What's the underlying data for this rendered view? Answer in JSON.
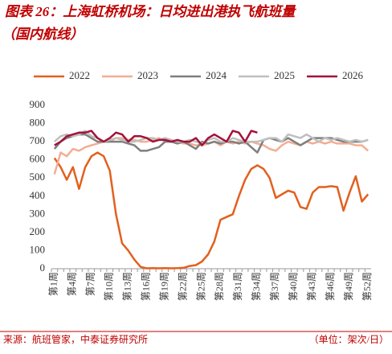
{
  "chart_data": {
    "type": "line",
    "title": [
      "图表 26：上海虹桥机场：日均进出港执飞航班量",
      "（国内航线）"
    ],
    "source": "来源：航班管家，中泰证券研究所",
    "unit_note": "（单位：架次/日）",
    "categories": [
      "第1周",
      null,
      null,
      "第4周",
      null,
      null,
      "第7周",
      null,
      null,
      "第10周",
      null,
      null,
      "第13周",
      null,
      null,
      "第16周",
      null,
      null,
      "第19周",
      null,
      null,
      "第22周",
      null,
      null,
      "第25周",
      null,
      null,
      "第28周",
      null,
      null,
      "第31周",
      null,
      null,
      "第34周",
      null,
      null,
      "第37周",
      null,
      null,
      "第40周",
      null,
      null,
      "第43周",
      null,
      null,
      "第46周",
      null,
      null,
      "第49周",
      null,
      null,
      "第52周"
    ],
    "ylim": [
      0,
      900
    ],
    "yticks": [
      0,
      100,
      200,
      300,
      400,
      500,
      600,
      700,
      800,
      900
    ],
    "legend": "top",
    "series": [
      {
        "name": "2022",
        "color": "#e2601f",
        "values": [
          610,
          560,
          490,
          560,
          440,
          560,
          620,
          640,
          620,
          540,
          300,
          140,
          100,
          50,
          10,
          2,
          3,
          2,
          3,
          2,
          3,
          5,
          15,
          20,
          40,
          80,
          150,
          270,
          285,
          300,
          400,
          490,
          550,
          570,
          550,
          500,
          390,
          410,
          430,
          420,
          340,
          330,
          420,
          450,
          450,
          455,
          450,
          320,
          420,
          510,
          370,
          410
        ]
      },
      {
        "name": "2023",
        "color": "#f4ad92",
        "values": [
          520,
          640,
          620,
          660,
          650,
          670,
          680,
          690,
          700,
          700,
          720,
          720,
          710,
          710,
          700,
          700,
          710,
          720,
          700,
          700,
          700,
          690,
          690,
          680,
          680,
          690,
          700,
          680,
          700,
          690,
          700,
          690,
          700,
          690,
          680,
          660,
          650,
          680,
          700,
          690,
          680,
          700,
          690,
          700,
          690,
          700,
          690,
          690,
          690,
          680,
          680,
          650
        ]
      },
      {
        "name": "2024",
        "color": "#7f7f7f",
        "values": [
          660,
          700,
          720,
          730,
          740,
          740,
          720,
          700,
          700,
          700,
          700,
          700,
          690,
          680,
          650,
          650,
          660,
          670,
          700,
          700,
          690,
          700,
          680,
          660,
          700,
          690,
          700,
          690,
          700,
          700,
          690,
          700,
          670,
          640,
          710,
          720,
          710,
          700,
          720,
          700,
          680,
          700,
          720,
          720,
          720,
          720,
          710,
          700,
          700,
          700,
          700,
          710
        ]
      },
      {
        "name": "2025",
        "color": "#bfbfbf",
        "values": [
          700,
          730,
          740,
          730,
          740,
          760,
          730,
          720,
          700,
          710,
          720,
          710,
          700,
          700,
          710,
          720,
          720,
          710,
          720,
          710,
          700,
          700,
          710,
          700,
          690,
          710,
          720,
          700,
          700,
          720,
          710,
          700,
          700,
          700,
          710,
          720,
          720,
          700,
          740,
          730,
          720,
          740,
          720,
          700,
          720,
          710,
          720,
          710,
          700,
          710,
          700,
          710
        ]
      },
      {
        "name": "2026",
        "color": "#a3123a",
        "values": [
          680,
          700,
          730,
          740,
          750,
          750,
          760,
          720,
          700,
          720,
          750,
          740,
          700,
          730,
          730,
          720,
          700,
          710,
          710,
          700,
          710,
          700,
          700,
          720,
          680,
          720,
          740,
          720,
          700,
          760,
          750,
          700,
          760,
          750,
          null,
          null,
          null,
          null,
          null,
          null,
          null,
          null,
          null,
          null,
          null,
          null,
          null,
          null,
          null,
          null,
          null,
          null
        ]
      }
    ]
  }
}
